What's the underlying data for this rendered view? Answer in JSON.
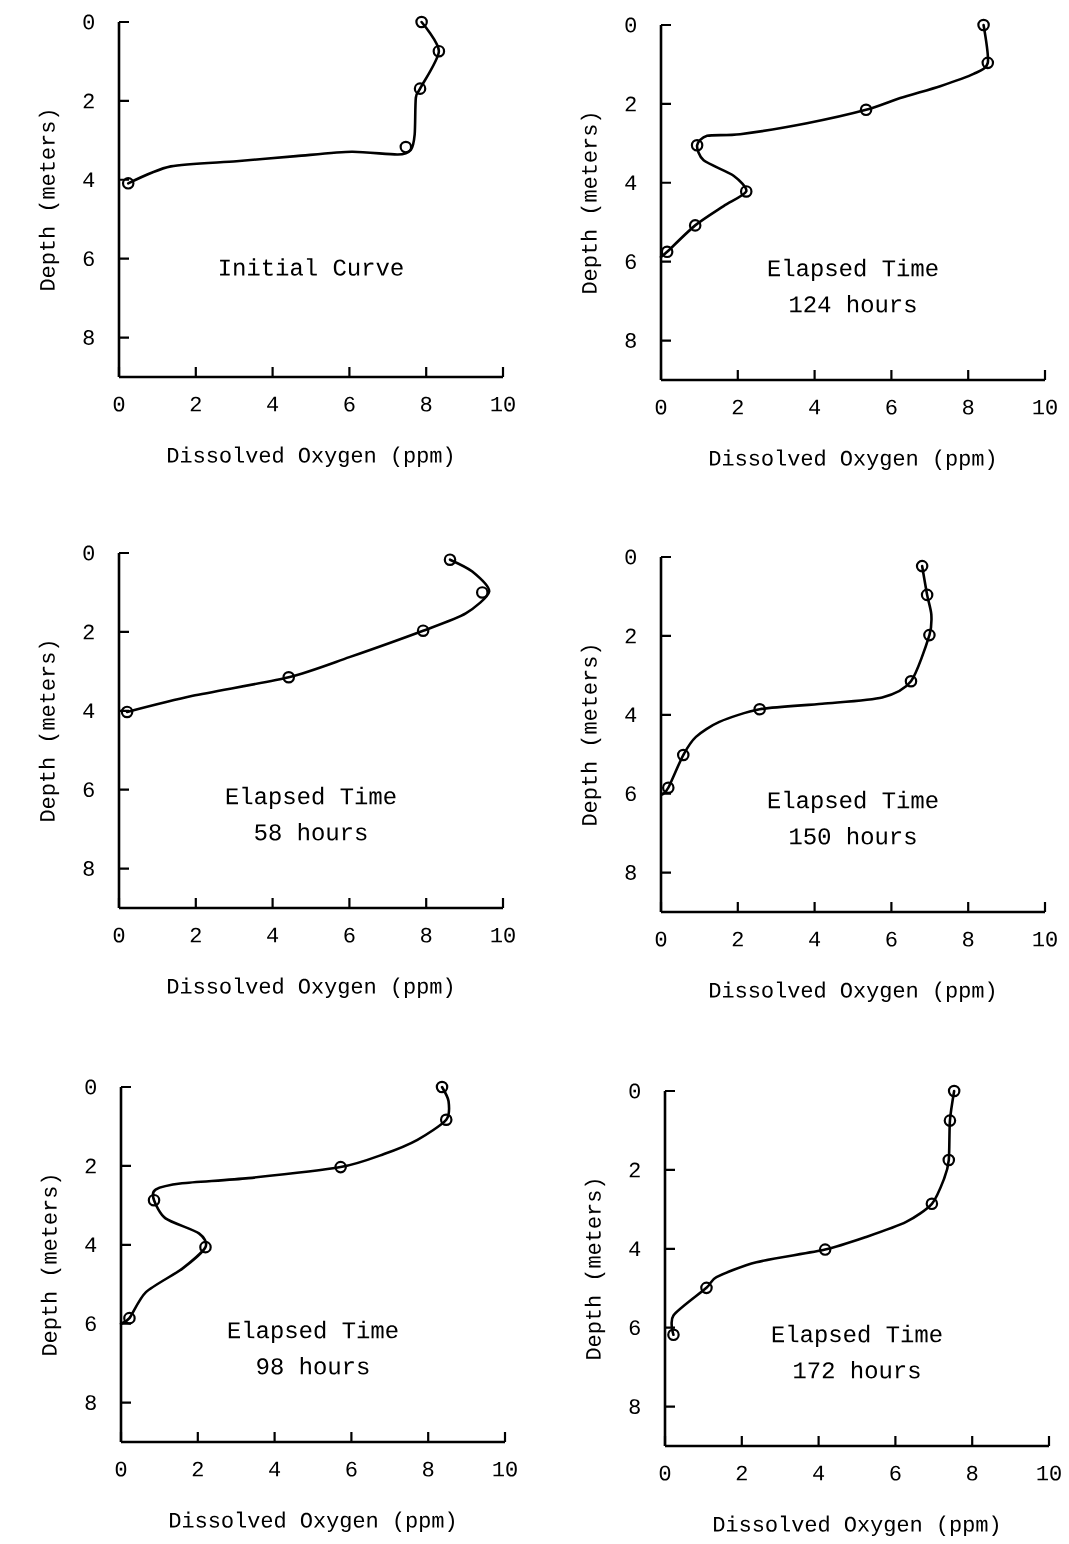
{
  "chart_data": [
    {
      "type": "line",
      "xlabel": "Dissolved Oxygen (ppm)",
      "ylabel": "Depth (meters)",
      "annotations": [
        "Initial Curve"
      ],
      "xlim": [
        0,
        10
      ],
      "ylim": [
        9,
        0
      ],
      "xticks": [
        0,
        2,
        4,
        6,
        8,
        10
      ],
      "yticks": [
        0,
        2,
        4,
        6,
        8
      ],
      "series": [
        {
          "type": "line",
          "color": "#000000",
          "x": [
            7.88,
            8.33,
            7.84,
            7.73,
            7.7,
            7.6,
            7.26,
            6.06,
            4.61,
            3.06,
            1.35,
            0.24
          ],
          "values": [
            0,
            0.74,
            1.69,
            1.92,
            2.85,
            3.24,
            3.36,
            3.29,
            3.4,
            3.53,
            3.66,
            4.09
          ]
        },
        {
          "type": "scatter",
          "marker": "circle",
          "color": "#000000",
          "x": [
            7.88,
            8.33,
            7.84,
            7.47,
            0.24
          ],
          "values": [
            0,
            0.74,
            1.69,
            3.17,
            4.09
          ]
        }
      ]
    },
    {
      "type": "line",
      "xlabel": "Dissolved Oxygen (ppm)",
      "ylabel": "Depth (meters)",
      "annotations": [
        "Elapsed Time",
        "124 hours"
      ],
      "xlim": [
        0,
        10
      ],
      "ylim": [
        9,
        0
      ],
      "xticks": [
        0,
        2,
        4,
        6,
        8,
        10
      ],
      "yticks": [
        0,
        2,
        4,
        6,
        8
      ],
      "series": [
        {
          "type": "line",
          "color": "#000000",
          "x": [
            8.4,
            8.51,
            8.14,
            7.27,
            6.23,
            5.34,
            3.8,
            2.06,
            1.2,
            0.94,
            1.11,
            1.89,
            2.22,
            1.63,
            0.89,
            0.16,
            0
          ],
          "values": [
            0,
            0.96,
            1.24,
            1.55,
            1.85,
            2.15,
            2.49,
            2.77,
            2.81,
            3.05,
            3.43,
            3.82,
            4.22,
            4.59,
            5.08,
            5.75,
            5.88
          ]
        },
        {
          "type": "scatter",
          "marker": "circle",
          "color": "#000000",
          "x": [
            8.4,
            8.51,
            5.34,
            0.94,
            2.22,
            0.89,
            0.16
          ],
          "values": [
            0,
            0.96,
            2.15,
            3.05,
            4.22,
            5.08,
            5.75
          ]
        }
      ]
    },
    {
      "type": "line",
      "xlabel": "Dissolved Oxygen (ppm)",
      "ylabel": "Depth (meters)",
      "annotations": [
        "Elapsed Time",
        "58 hours"
      ],
      "xlim": [
        0,
        10
      ],
      "ylim": [
        9,
        0
      ],
      "xticks": [
        0,
        2,
        4,
        6,
        8,
        10
      ],
      "yticks": [
        0,
        2,
        4,
        6,
        8
      ],
      "series": [
        {
          "type": "line",
          "color": "#000000",
          "x": [
            8.62,
            9.2,
            9.64,
            9.03,
            7.92,
            6.0,
            4.42,
            1.92,
            0.21
          ],
          "values": [
            0.17,
            0.47,
            0.98,
            1.53,
            1.97,
            2.64,
            3.15,
            3.62,
            4.03
          ]
        },
        {
          "type": "scatter",
          "marker": "circle",
          "color": "#000000",
          "x": [
            8.62,
            9.46,
            7.92,
            4.42,
            0.21
          ],
          "values": [
            0.17,
            1.0,
            1.97,
            3.15,
            4.03
          ]
        }
      ]
    },
    {
      "type": "line",
      "xlabel": "Dissolved Oxygen (ppm)",
      "ylabel": "Depth (meters)",
      "annotations": [
        "Elapsed Time",
        "150 hours"
      ],
      "xlim": [
        0,
        10
      ],
      "ylim": [
        9,
        0
      ],
      "xticks": [
        0,
        2,
        4,
        6,
        8,
        10
      ],
      "yticks": [
        0,
        2,
        4,
        6,
        8
      ],
      "series": [
        {
          "type": "line",
          "color": "#000000",
          "x": [
            6.8,
            6.93,
            7.04,
            6.99,
            6.51,
            5.76,
            4.2,
            2.57,
            1.52,
            0.91,
            0.58,
            0.19,
            0.04
          ],
          "values": [
            0.23,
            0.96,
            1.46,
            1.98,
            3.15,
            3.56,
            3.72,
            3.86,
            4.18,
            4.56,
            5.02,
            5.85,
            6.02
          ]
        },
        {
          "type": "scatter",
          "marker": "circle",
          "color": "#000000",
          "x": [
            6.8,
            6.93,
            6.99,
            6.51,
            2.57,
            0.58,
            0.19
          ],
          "values": [
            0.23,
            0.96,
            1.98,
            3.15,
            3.86,
            5.02,
            5.85
          ]
        }
      ]
    },
    {
      "type": "line",
      "xlabel": "Dissolved Oxygen (ppm)",
      "ylabel": "Depth (meters)",
      "annotations": [
        "Elapsed Time",
        "98 hours"
      ],
      "xlim": [
        0,
        10
      ],
      "ylim": [
        9,
        0
      ],
      "xticks": [
        0,
        2,
        4,
        6,
        8,
        10
      ],
      "yticks": [
        0,
        2,
        4,
        6,
        8
      ],
      "series": [
        {
          "type": "line",
          "color": "#000000",
          "x": [
            8.36,
            8.53,
            8.47,
            7.72,
            6.85,
            5.72,
            3.32,
            1.59,
            0.9,
            0.86,
            1.16,
            2.03,
            2.2,
            1.59,
            0.65,
            0.22,
            0
          ],
          "values": [
            0,
            0.36,
            0.83,
            1.34,
            1.7,
            2.03,
            2.31,
            2.44,
            2.6,
            2.87,
            3.33,
            3.71,
            4.06,
            4.61,
            5.2,
            5.86,
            6.0
          ]
        },
        {
          "type": "scatter",
          "marker": "circle",
          "color": "#000000",
          "x": [
            8.36,
            8.47,
            5.72,
            0.86,
            2.2,
            0.22
          ],
          "values": [
            0,
            0.83,
            2.03,
            2.87,
            4.06,
            5.86
          ]
        }
      ]
    },
    {
      "type": "line",
      "xlabel": "Dissolved Oxygen (ppm)",
      "ylabel": "Depth (meters)",
      "annotations": [
        "Elapsed Time",
        "172 hours"
      ],
      "xlim": [
        0,
        10
      ],
      "ylim": [
        9,
        0
      ],
      "xticks": [
        0,
        2,
        4,
        6,
        8,
        10
      ],
      "yticks": [
        0,
        2,
        4,
        6,
        8
      ],
      "series": [
        {
          "type": "line",
          "color": "#000000",
          "x": [
            7.53,
            7.42,
            7.39,
            7.27,
            6.95,
            6.28,
            5.24,
            4.17,
            2.38,
            1.34,
            1.08,
            0.22,
            0.22
          ],
          "values": [
            0,
            0.75,
            1.75,
            2.22,
            2.86,
            3.32,
            3.7,
            4.02,
            4.34,
            4.72,
            4.99,
            5.69,
            6.18
          ]
        },
        {
          "type": "scatter",
          "marker": "circle",
          "color": "#000000",
          "x": [
            7.53,
            7.42,
            7.39,
            6.95,
            4.17,
            1.08,
            0.22
          ],
          "values": [
            0,
            0.75,
            1.75,
            2.86,
            4.02,
            4.99,
            6.18
          ]
        }
      ]
    }
  ]
}
